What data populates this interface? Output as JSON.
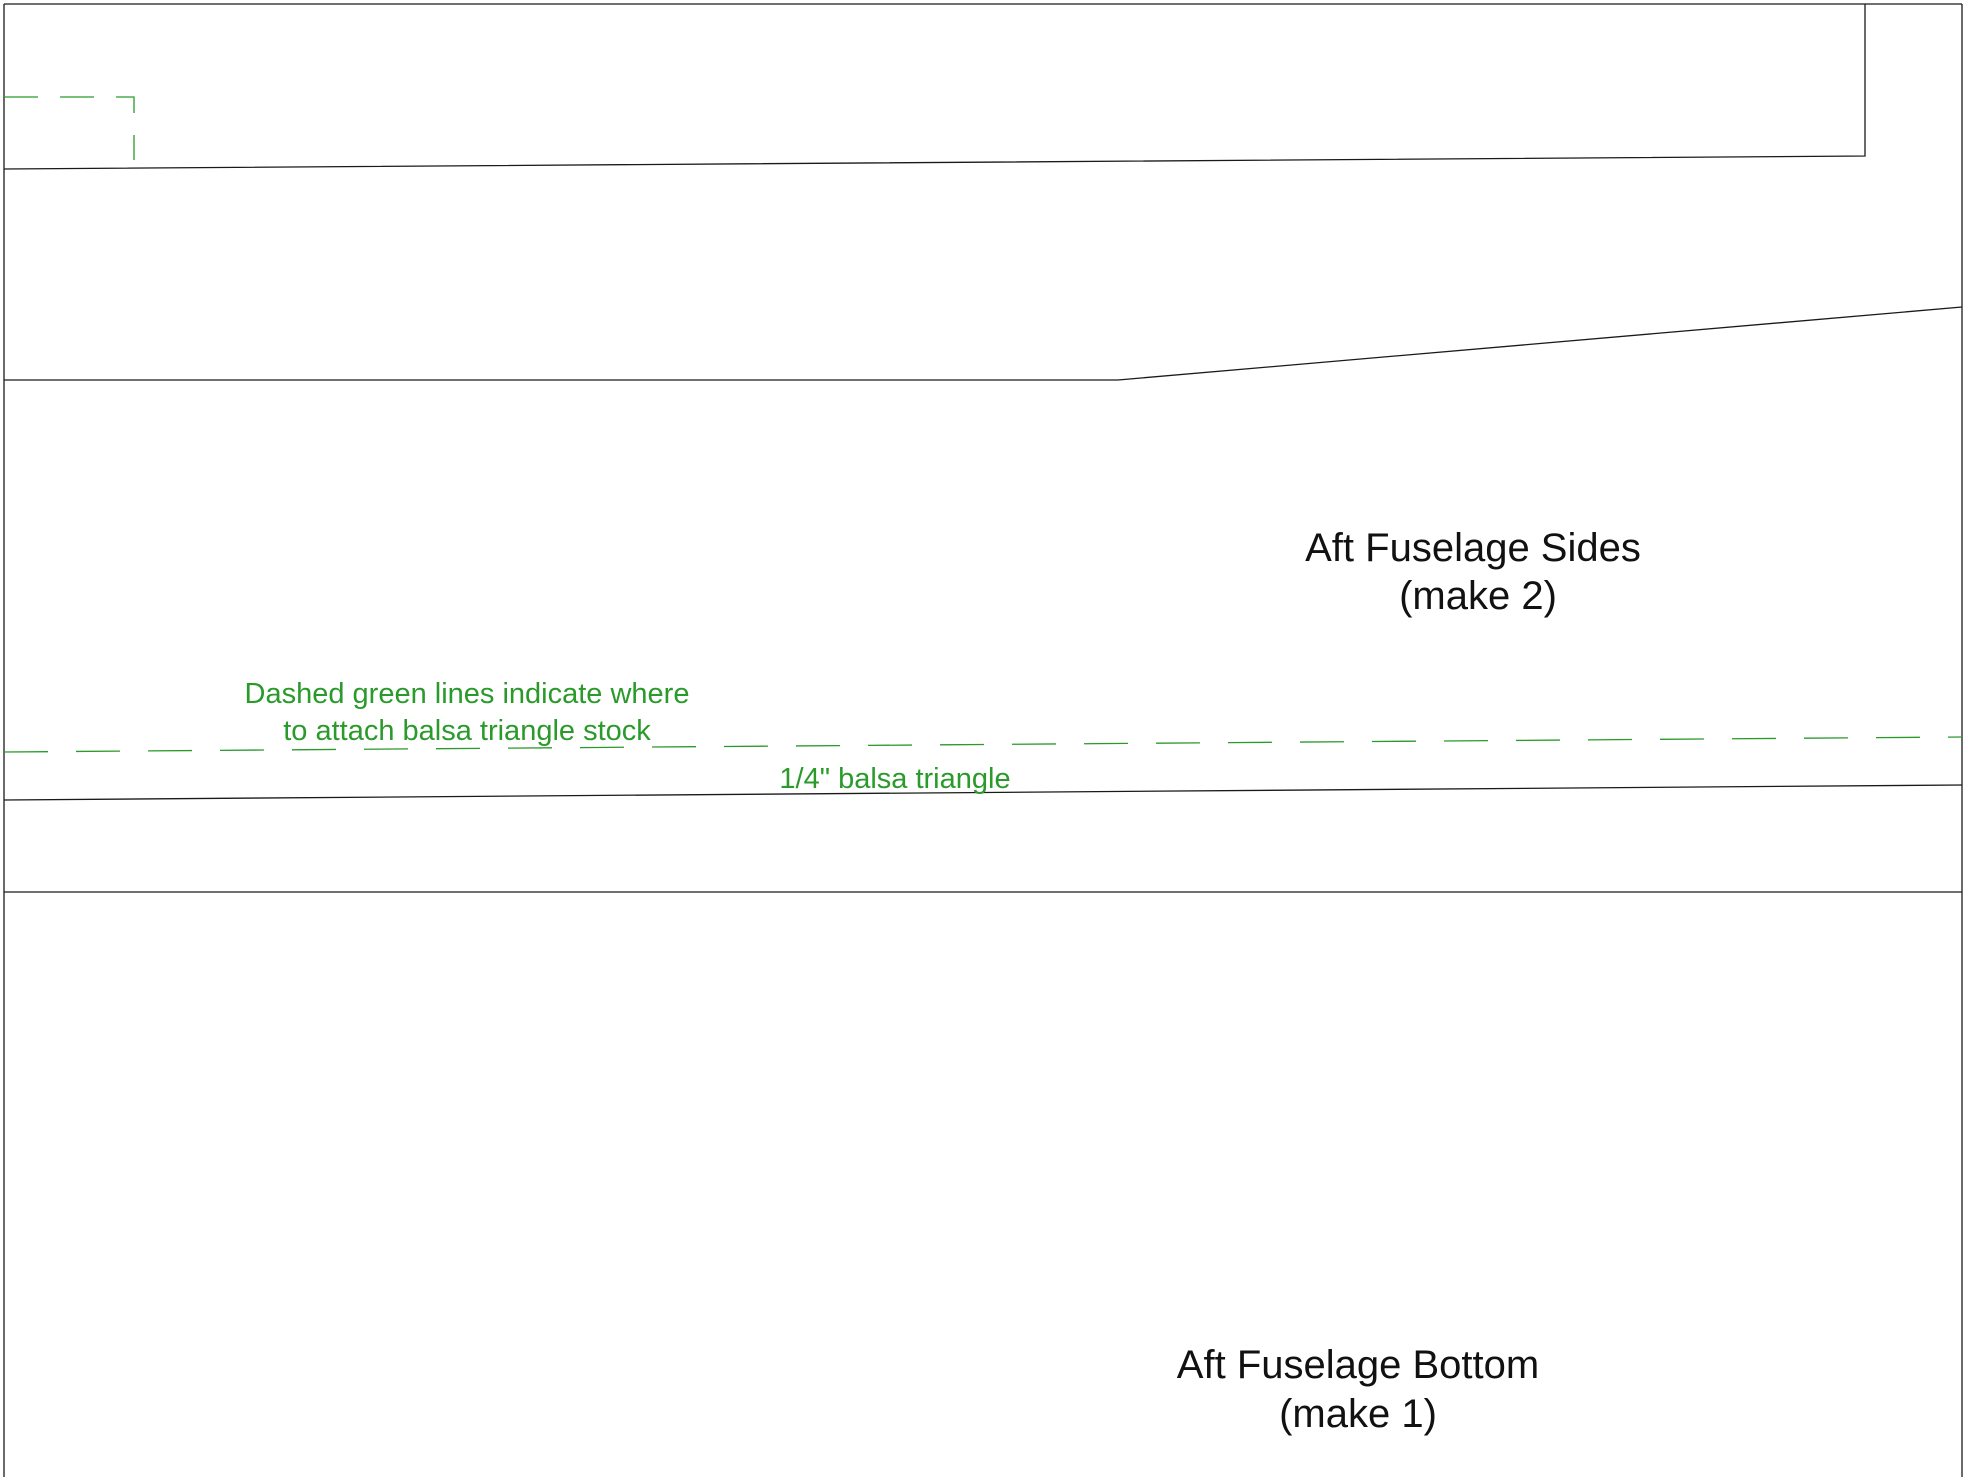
{
  "colors": {
    "outline": "#1a1a1a",
    "guide": "#2a9a2a",
    "label": "#111111",
    "background": "#ffffff"
  },
  "parts": {
    "sides": {
      "name": "Aft Fuselage Sides",
      "quantity": "(make 2)"
    },
    "bottom": {
      "name": "Aft Fuselage Bottom",
      "quantity": "(make 1)"
    }
  },
  "notes": {
    "dashed_line_line1": "Dashed green lines indicate where",
    "dashed_line_line2": "to attach balsa triangle stock",
    "triangle_label": "1/4\" balsa triangle"
  }
}
